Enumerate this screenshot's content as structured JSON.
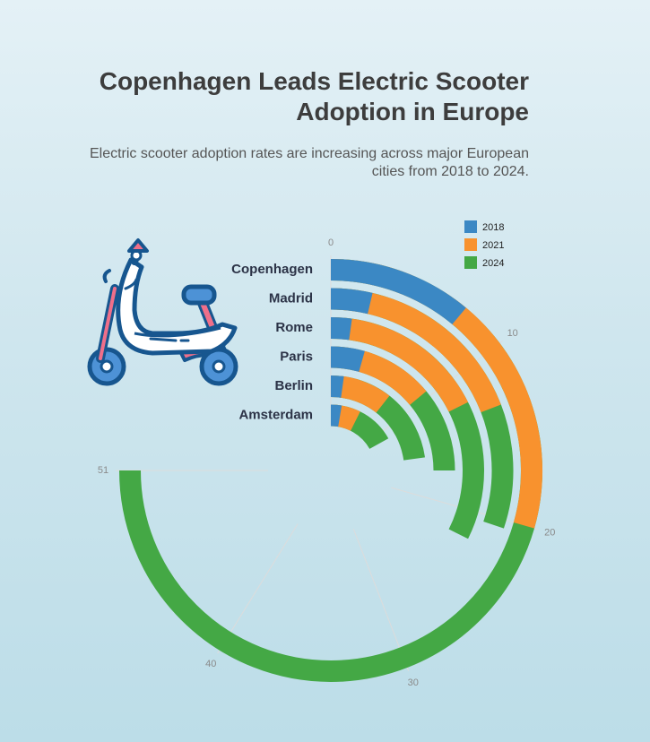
{
  "title": "Copenhagen Leads Electric Scooter Adoption in Europe",
  "subtitle": "Electric scooter adoption rates are increasing across major European cities from 2018 to 2024.",
  "chart_data": {
    "type": "radial-bar",
    "categories": [
      "Copenhagen",
      "Madrid",
      "Rome",
      "Paris",
      "Berlin",
      "Amsterdam"
    ],
    "series": [
      {
        "name": "2018",
        "color": "#3b88c4",
        "values": [
          7.5,
          2.5,
          1.5,
          3.0,
          1.5,
          1.8
        ]
      },
      {
        "name": "2021",
        "color": "#f8922e",
        "values": [
          20.0,
          13.0,
          12.0,
          9.5,
          7.2,
          5.0
        ]
      },
      {
        "name": "2024",
        "color": "#44a845",
        "values": [
          51.0,
          20.5,
          22.0,
          17.0,
          15.5,
          11.5
        ]
      }
    ],
    "radial_axis": {
      "max": 51,
      "ticks": [
        0,
        10,
        20,
        30,
        40,
        51
      ]
    },
    "legend_position": "top-right",
    "overlay": "stacked-overlap",
    "icon": "electric-scooter-icon"
  }
}
